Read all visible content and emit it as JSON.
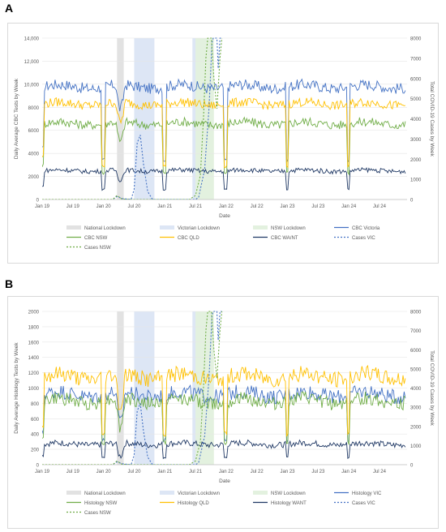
{
  "panels": [
    {
      "letter": "A"
    },
    {
      "letter": "B"
    }
  ],
  "chart_data": [
    {
      "type": "line",
      "xlabel": "Date",
      "ylabel": "Daily Average CBC Tests by Week",
      "y2label": "Total COVID-19 Cases by Week",
      "ylim": [
        0,
        14000
      ],
      "y2lim": [
        0,
        8000
      ],
      "yticks": [
        "0",
        "2000",
        "4000",
        "6000",
        "8000",
        "10,000",
        "12,000",
        "14,000"
      ],
      "y2ticks": [
        "0",
        "1000",
        "2000",
        "3000",
        "4000",
        "5000",
        "6000",
        "7000",
        "8000"
      ],
      "xticks": [
        "Jan 19",
        "Jul 19",
        "Jan 20",
        "Jul 20",
        "Jan 21",
        "Jul 21",
        "Jan 22",
        "Jul 22",
        "Jan 23",
        "Jul 23",
        "Jan 24",
        "Jul 24"
      ],
      "shaded_periods": [
        {
          "name": "National Lockdown",
          "from": 2020.22,
          "to": 2020.33,
          "color": "#e2e2e2"
        },
        {
          "name": "Victorian Lockdown",
          "from": 2020.5,
          "to": 2020.83,
          "color": "#dde6f5"
        },
        {
          "name": "NSW Lockdown",
          "from": 2021.48,
          "to": 2021.8,
          "color": "#e3f1df"
        },
        {
          "name": "Victorian Lockdown",
          "from": 2021.45,
          "to": 2021.5,
          "color": "#dde6f5"
        }
      ],
      "series": [
        {
          "name": "CBC Victoria",
          "color": "#4472c4",
          "dash": "",
          "axis": "left",
          "base": 9800,
          "amp": 600
        },
        {
          "name": "CBC NSW",
          "color": "#70ad47",
          "dash": "",
          "axis": "left",
          "base": 6600,
          "amp": 500
        },
        {
          "name": "CBC QLD",
          "color": "#ffc000",
          "dash": "",
          "axis": "left",
          "base": 8300,
          "amp": 500
        },
        {
          "name": "CBC WA/NT",
          "color": "#1f3864",
          "dash": "",
          "axis": "left",
          "base": 2500,
          "amp": 250
        },
        {
          "name": "Cases VIC",
          "color": "#4472c4",
          "dash": "2,2",
          "axis": "right"
        },
        {
          "name": "Cases NSW",
          "color": "#70ad47",
          "dash": "2,2",
          "axis": "right"
        }
      ],
      "cases_vic": [
        [
          2019.0,
          0
        ],
        [
          2020.15,
          0
        ],
        [
          2020.22,
          150
        ],
        [
          2020.3,
          50
        ],
        [
          2020.45,
          0
        ],
        [
          2020.5,
          500
        ],
        [
          2020.55,
          2800
        ],
        [
          2020.6,
          3200
        ],
        [
          2020.65,
          1800
        ],
        [
          2020.72,
          400
        ],
        [
          2020.8,
          0
        ],
        [
          2021.5,
          0
        ],
        [
          2021.55,
          100
        ],
        [
          2021.65,
          1500
        ],
        [
          2021.72,
          4500
        ],
        [
          2021.77,
          7800
        ],
        [
          2021.79,
          8000
        ],
        [
          2021.85,
          8000
        ],
        [
          2021.87,
          6500
        ],
        [
          2021.9,
          8000
        ],
        [
          2021.93,
          8000
        ]
      ],
      "cases_nsw": [
        [
          2019.0,
          0
        ],
        [
          2020.15,
          0
        ],
        [
          2020.22,
          200
        ],
        [
          2020.3,
          20
        ],
        [
          2020.45,
          0
        ],
        [
          2021.4,
          0
        ],
        [
          2021.5,
          200
        ],
        [
          2021.58,
          1200
        ],
        [
          2021.63,
          4000
        ],
        [
          2021.67,
          7000
        ],
        [
          2021.7,
          8000
        ],
        [
          2021.76,
          8000
        ],
        [
          2021.8,
          6000
        ],
        [
          2021.85,
          4500
        ],
        [
          2021.9,
          7000
        ],
        [
          2021.93,
          8000
        ]
      ],
      "legend": [
        "National Lockdown",
        "Victorian Lockdown",
        "NSW Lockdown",
        "CBC Victoria",
        "CBC NSW",
        "CBC QLD",
        "CBC WA/NT",
        "Cases VIC",
        "Cases NSW"
      ]
    },
    {
      "type": "line",
      "xlabel": "Date",
      "ylabel": "Daily Average Histology Tests by Week",
      "y2label": "Total COVID-19 Cases by Week",
      "ylim": [
        0,
        2000
      ],
      "y2lim": [
        0,
        8000
      ],
      "yticks": [
        "0",
        "200",
        "400",
        "600",
        "800",
        "1000",
        "1200",
        "1400",
        "1600",
        "1800",
        "2000"
      ],
      "y2ticks": [
        "0",
        "1000",
        "2000",
        "3000",
        "4000",
        "5000",
        "6000",
        "7000",
        "8000"
      ],
      "xticks": [
        "Jan 19",
        "Jul 19",
        "Jan 20",
        "Jul 20",
        "Jan 21",
        "Jul 21",
        "Jan 22",
        "Jul 22",
        "Jan 23",
        "Jul 23",
        "Jan 24",
        "Jul 24"
      ],
      "shaded_periods": [
        {
          "name": "National Lockdown",
          "from": 2020.22,
          "to": 2020.33,
          "color": "#e2e2e2"
        },
        {
          "name": "Victorian Lockdown",
          "from": 2020.5,
          "to": 2020.83,
          "color": "#dde6f5"
        },
        {
          "name": "NSW Lockdown",
          "from": 2021.48,
          "to": 2021.8,
          "color": "#e3f1df"
        },
        {
          "name": "Victorian Lockdown",
          "from": 2021.45,
          "to": 2021.5,
          "color": "#dde6f5"
        }
      ],
      "series": [
        {
          "name": "Histology VIC",
          "color": "#4472c4",
          "dash": "",
          "axis": "left",
          "base": 920,
          "amp": 120
        },
        {
          "name": "Histology NSW",
          "color": "#70ad47",
          "dash": "",
          "axis": "left",
          "base": 830,
          "amp": 110
        },
        {
          "name": "Histology QLD",
          "color": "#ffc000",
          "dash": "",
          "axis": "left",
          "base": 1150,
          "amp": 130
        },
        {
          "name": "Histology WANT",
          "color": "#1f3864",
          "dash": "",
          "axis": "left",
          "base": 270,
          "amp": 50
        },
        {
          "name": "Cases VIC",
          "color": "#4472c4",
          "dash": "2,2",
          "axis": "right"
        },
        {
          "name": "Cases NSW",
          "color": "#70ad47",
          "dash": "2,2",
          "axis": "right"
        }
      ],
      "cases_vic": [
        [
          2019.0,
          0
        ],
        [
          2020.15,
          0
        ],
        [
          2020.22,
          150
        ],
        [
          2020.3,
          50
        ],
        [
          2020.45,
          0
        ],
        [
          2020.5,
          500
        ],
        [
          2020.55,
          2800
        ],
        [
          2020.6,
          3200
        ],
        [
          2020.65,
          1800
        ],
        [
          2020.72,
          400
        ],
        [
          2020.8,
          0
        ],
        [
          2021.5,
          0
        ],
        [
          2021.55,
          100
        ],
        [
          2021.65,
          1500
        ],
        [
          2021.72,
          4500
        ],
        [
          2021.77,
          7800
        ],
        [
          2021.79,
          8000
        ],
        [
          2021.85,
          8000
        ],
        [
          2021.87,
          6500
        ],
        [
          2021.9,
          8000
        ],
        [
          2021.93,
          8000
        ]
      ],
      "cases_nsw": [
        [
          2019.0,
          0
        ],
        [
          2020.15,
          0
        ],
        [
          2020.22,
          200
        ],
        [
          2020.3,
          20
        ],
        [
          2020.45,
          0
        ],
        [
          2021.4,
          0
        ],
        [
          2021.5,
          200
        ],
        [
          2021.58,
          1200
        ],
        [
          2021.63,
          4000
        ],
        [
          2021.67,
          7000
        ],
        [
          2021.7,
          8000
        ],
        [
          2021.76,
          8000
        ],
        [
          2021.8,
          6000
        ],
        [
          2021.85,
          4500
        ],
        [
          2021.9,
          7000
        ],
        [
          2021.93,
          8000
        ]
      ],
      "legend": [
        "National Lockdown",
        "Victorian Lockdown",
        "NSW Lockdown",
        "Histology VIC",
        "Histology NSW",
        "Histology QLD",
        "Histology WANT",
        "Cases VIC",
        "Cases NSW"
      ]
    }
  ]
}
